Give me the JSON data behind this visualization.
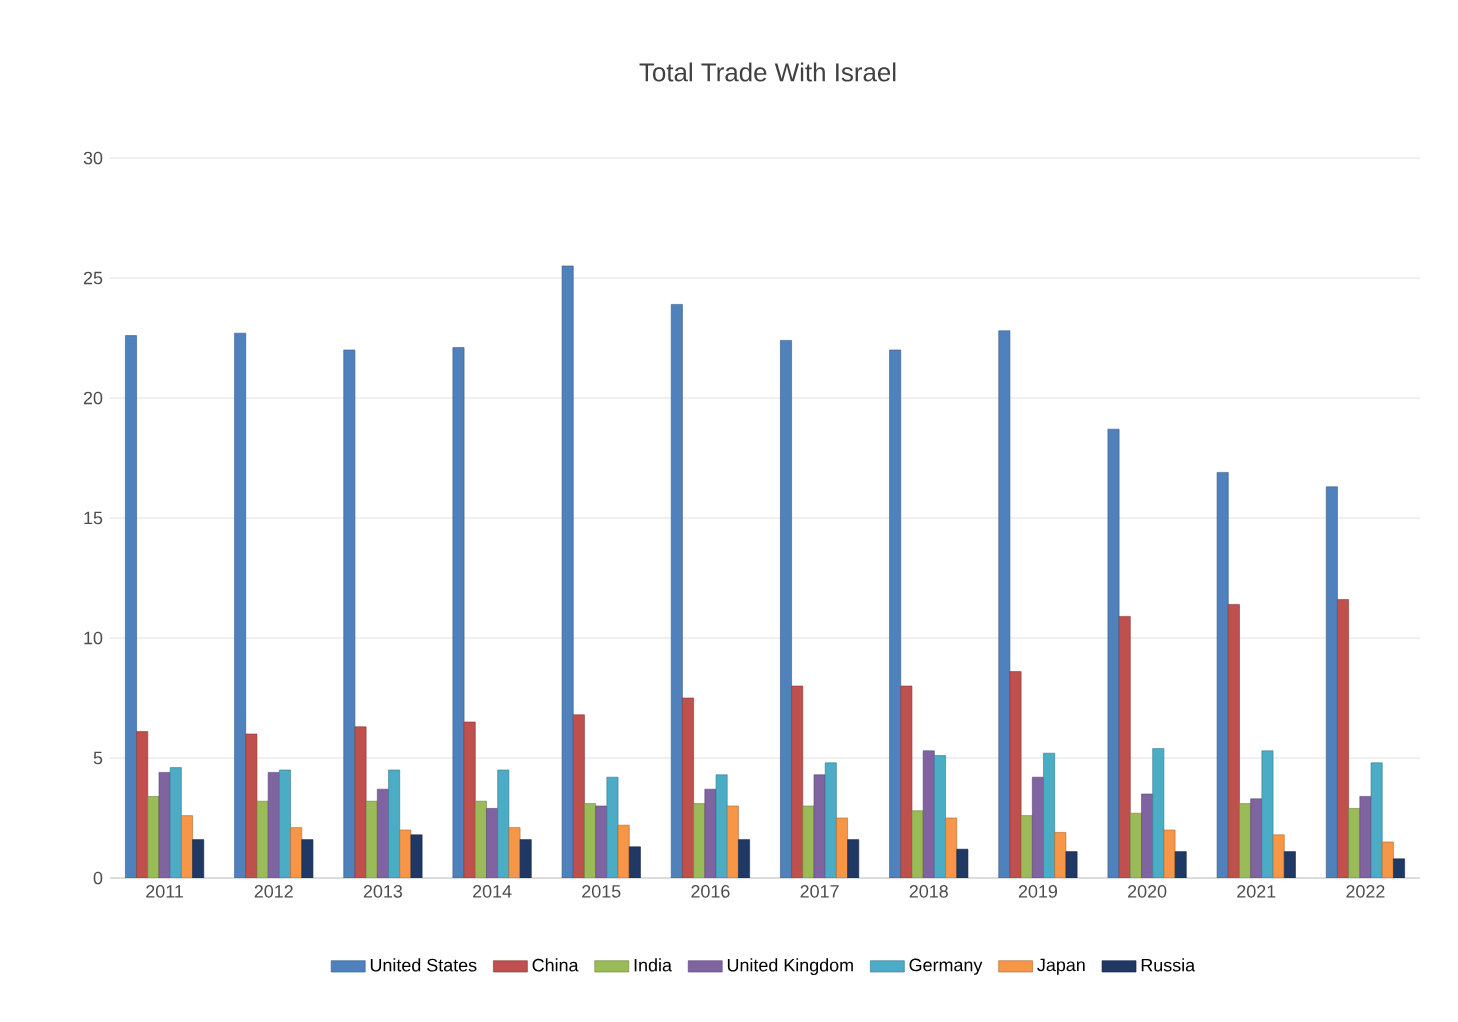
{
  "chart_data": {
    "type": "bar",
    "title": "Total Trade With Israel",
    "categories": [
      "2011",
      "2012",
      "2013",
      "2014",
      "2015",
      "2016",
      "2017",
      "2018",
      "2019",
      "2020",
      "2021",
      "2022"
    ],
    "series": [
      {
        "name": "United States",
        "color": "#4f81bd",
        "values": [
          22.6,
          22.7,
          22.0,
          22.1,
          25.5,
          23.9,
          22.4,
          22.0,
          22.8,
          18.7,
          16.9,
          16.3
        ]
      },
      {
        "name": "China",
        "color": "#c0504d",
        "values": [
          6.1,
          6.0,
          6.3,
          6.5,
          6.8,
          7.5,
          8.0,
          8.0,
          8.6,
          10.9,
          11.4,
          11.6
        ]
      },
      {
        "name": "India",
        "color": "#9bbb59",
        "values": [
          3.4,
          3.2,
          3.2,
          3.2,
          3.1,
          3.1,
          3.0,
          2.8,
          2.6,
          2.7,
          3.1,
          2.9
        ]
      },
      {
        "name": "United Kingdom",
        "color": "#8064a2",
        "values": [
          4.4,
          4.4,
          3.7,
          2.9,
          3.0,
          3.7,
          4.3,
          5.3,
          4.2,
          3.5,
          3.3,
          3.4
        ]
      },
      {
        "name": "Germany",
        "color": "#4bacc6",
        "values": [
          4.6,
          4.5,
          4.5,
          4.5,
          4.2,
          4.3,
          4.8,
          5.1,
          5.2,
          5.4,
          5.3,
          4.8
        ]
      },
      {
        "name": "Japan",
        "color": "#f79646",
        "values": [
          2.6,
          2.1,
          2.0,
          2.1,
          2.2,
          3.0,
          2.5,
          2.5,
          1.9,
          2.0,
          1.8,
          1.5
        ]
      },
      {
        "name": "Russia",
        "color": "#1f3864",
        "values": [
          1.6,
          1.6,
          1.8,
          1.6,
          1.3,
          1.6,
          1.6,
          1.2,
          1.1,
          1.1,
          1.1,
          0.8
        ]
      }
    ],
    "ylim": [
      0,
      30
    ],
    "yticks": [
      0,
      5,
      10,
      15,
      20,
      25,
      30
    ],
    "grid": "y",
    "legend": "bottom"
  }
}
